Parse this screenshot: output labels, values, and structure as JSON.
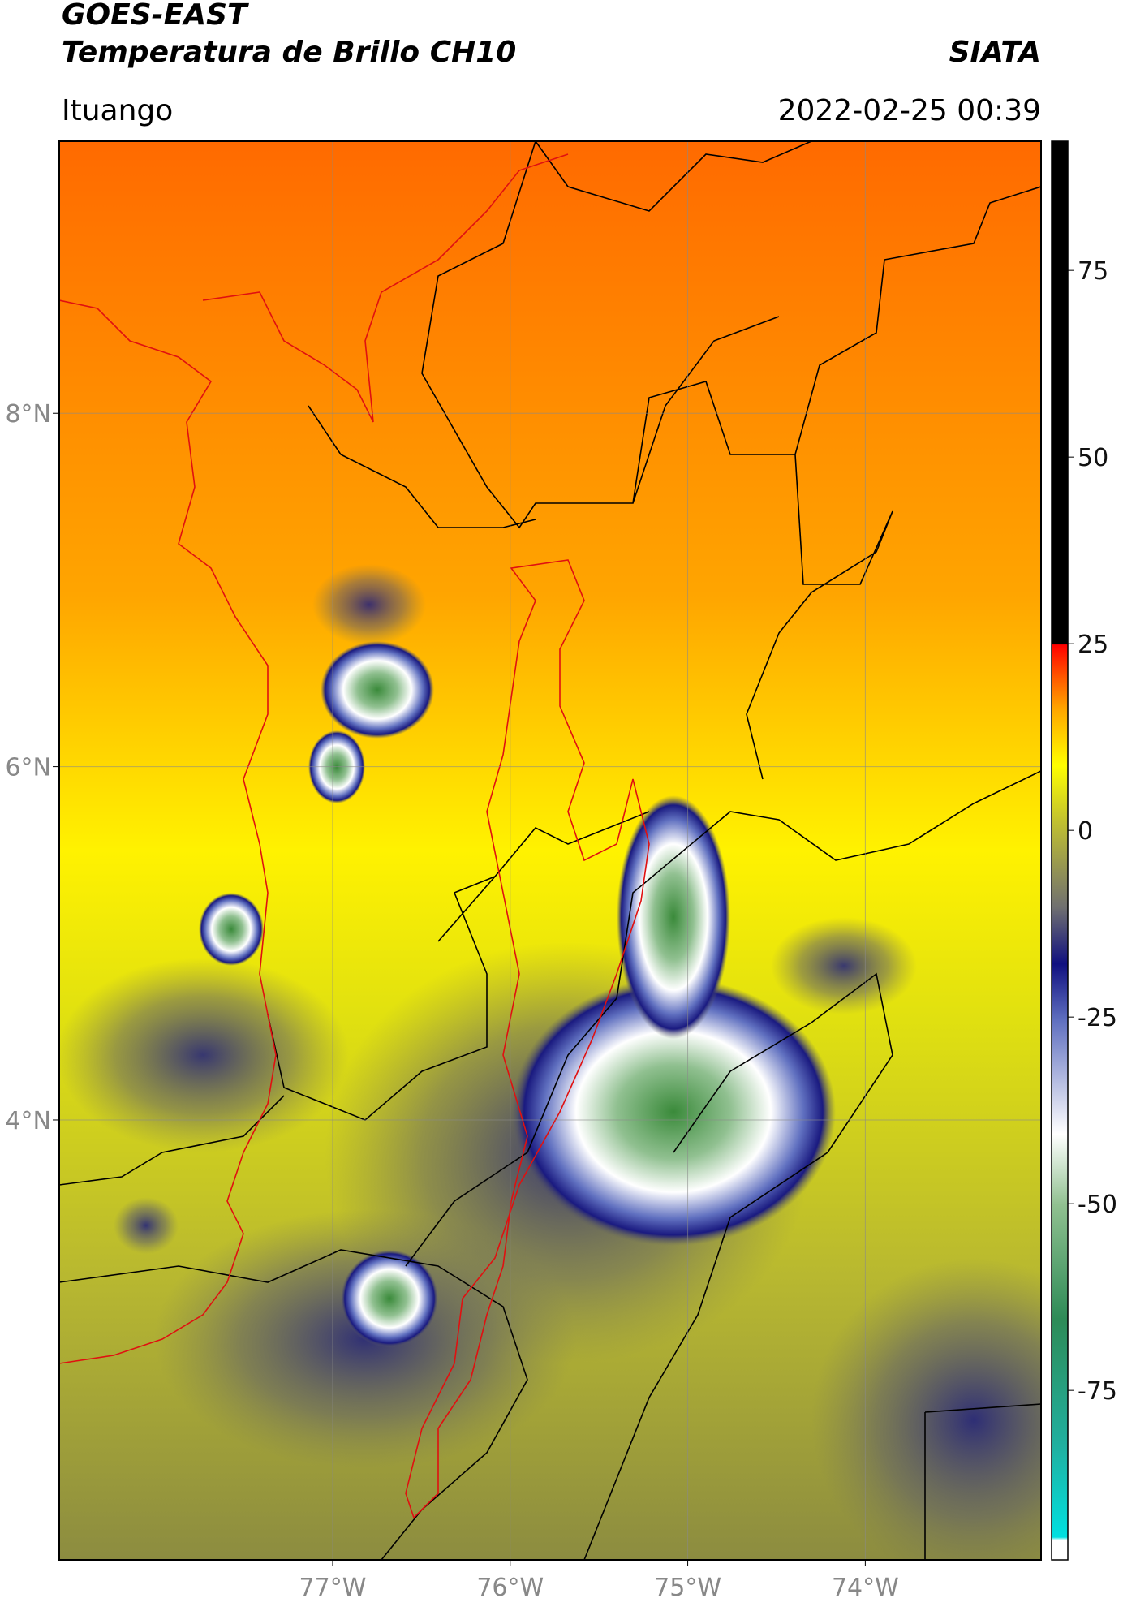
{
  "header": {
    "title": "GOES-EAST",
    "subtitle": "Temperatura de Brillo CH10",
    "source": "SIATA",
    "location": "Ituango",
    "datetime": "2022-02-25 00:39"
  },
  "map": {
    "xlim": [
      -78.54,
      -73.01
    ],
    "ylim": [
      1.51,
      9.54
    ],
    "xticks": [
      {
        "value": -77,
        "label": "77°W"
      },
      {
        "value": -76,
        "label": "76°W"
      },
      {
        "value": -75,
        "label": "75°W"
      },
      {
        "value": -74,
        "label": "74°W"
      }
    ],
    "yticks": [
      {
        "value": 8,
        "label": "8°N"
      },
      {
        "value": 6,
        "label": "6°N"
      },
      {
        "value": 4,
        "label": "4°N"
      }
    ],
    "grid": true
  },
  "colorbar": {
    "lim": [
      -97.7,
      92.3
    ],
    "ticks": [
      75,
      50,
      25,
      0,
      -25,
      -50,
      -75
    ]
  }
}
